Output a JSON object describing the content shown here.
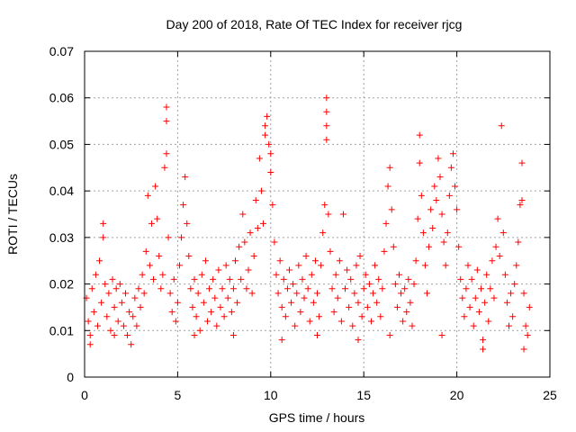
{
  "chart_data": {
    "type": "scatter",
    "title": "Day 200 of 2018, Rate Of TEC Index for receiver rjcg",
    "xlabel": "GPS time / hours",
    "ylabel": "ROTI / TECUs",
    "xlim": [
      0,
      25
    ],
    "ylim": [
      0,
      0.07
    ],
    "xticks": [
      "0",
      "5",
      "10",
      "15",
      "20",
      "25"
    ],
    "yticks": [
      "0",
      "0.01",
      "0.02",
      "0.03",
      "0.04",
      "0.05",
      "0.06",
      "0.07"
    ],
    "grid": true,
    "marker": "plus",
    "series": [
      {
        "color": "#ff0000",
        "points": [
          [
            0.1,
            0.017
          ],
          [
            0.2,
            0.012
          ],
          [
            0.3,
            0.009
          ],
          [
            0.4,
            0.019
          ],
          [
            0.5,
            0.014
          ],
          [
            0.6,
            0.022
          ],
          [
            0.7,
            0.011
          ],
          [
            0.8,
            0.025
          ],
          [
            0.9,
            0.016
          ],
          [
            1.0,
            0.033
          ],
          [
            1.0,
            0.03
          ],
          [
            1.1,
            0.02
          ],
          [
            1.2,
            0.013
          ],
          [
            1.3,
            0.018
          ],
          [
            1.4,
            0.01
          ],
          [
            1.5,
            0.021
          ],
          [
            1.6,
            0.015
          ],
          [
            1.7,
            0.019
          ],
          [
            1.8,
            0.012
          ],
          [
            1.9,
            0.02
          ],
          [
            2.0,
            0.016
          ],
          [
            2.1,
            0.011
          ],
          [
            2.2,
            0.018
          ],
          [
            2.3,
            0.009
          ],
          [
            2.4,
            0.014
          ],
          [
            2.5,
            0.007
          ],
          [
            2.6,
            0.013
          ],
          [
            2.7,
            0.017
          ],
          [
            2.8,
            0.011
          ],
          [
            2.9,
            0.019
          ],
          [
            3.0,
            0.015
          ],
          [
            3.1,
            0.022
          ],
          [
            3.2,
            0.018
          ],
          [
            3.3,
            0.027
          ],
          [
            3.4,
            0.039
          ],
          [
            3.5,
            0.024
          ],
          [
            3.6,
            0.033
          ],
          [
            3.7,
            0.021
          ],
          [
            3.8,
            0.041
          ],
          [
            3.9,
            0.034
          ],
          [
            4.0,
            0.026
          ],
          [
            4.1,
            0.019
          ],
          [
            4.2,
            0.022
          ],
          [
            4.3,
            0.045
          ],
          [
            4.4,
            0.058
          ],
          [
            4.4,
            0.055
          ],
          [
            4.4,
            0.048
          ],
          [
            4.5,
            0.03
          ],
          [
            4.6,
            0.018
          ],
          [
            4.7,
            0.014
          ],
          [
            4.8,
            0.021
          ],
          [
            4.9,
            0.012
          ],
          [
            5.0,
            0.016
          ],
          [
            5.1,
            0.024
          ],
          [
            5.2,
            0.03
          ],
          [
            5.3,
            0.037
          ],
          [
            5.4,
            0.043
          ],
          [
            5.5,
            0.033
          ],
          [
            5.6,
            0.026
          ],
          [
            5.7,
            0.019
          ],
          [
            5.8,
            0.015
          ],
          [
            5.9,
            0.021
          ],
          [
            6.0,
            0.013
          ],
          [
            6.1,
            0.018
          ],
          [
            6.2,
            0.01
          ],
          [
            6.3,
            0.022
          ],
          [
            6.4,
            0.016
          ],
          [
            6.5,
            0.025
          ],
          [
            6.6,
            0.012
          ],
          [
            6.7,
            0.019
          ],
          [
            6.8,
            0.014
          ],
          [
            6.9,
            0.021
          ],
          [
            7.0,
            0.017
          ],
          [
            7.1,
            0.011
          ],
          [
            7.2,
            0.023
          ],
          [
            7.3,
            0.015
          ],
          [
            7.4,
            0.019
          ],
          [
            7.5,
            0.013
          ],
          [
            7.6,
            0.024
          ],
          [
            7.7,
            0.017
          ],
          [
            7.8,
            0.021
          ],
          [
            7.9,
            0.014
          ],
          [
            8.0,
            0.019
          ],
          [
            8.1,
            0.025
          ],
          [
            8.2,
            0.016
          ],
          [
            8.3,
            0.028
          ],
          [
            8.4,
            0.021
          ],
          [
            8.5,
            0.035
          ],
          [
            8.6,
            0.029
          ],
          [
            8.7,
            0.019
          ],
          [
            8.8,
            0.023
          ],
          [
            8.9,
            0.031
          ],
          [
            9.0,
            0.018
          ],
          [
            9.1,
            0.026
          ],
          [
            9.2,
            0.038
          ],
          [
            9.3,
            0.032
          ],
          [
            9.4,
            0.047
          ],
          [
            9.5,
            0.04
          ],
          [
            9.6,
            0.033
          ],
          [
            9.7,
            0.054
          ],
          [
            9.7,
            0.052
          ],
          [
            9.8,
            0.056
          ],
          [
            9.9,
            0.05
          ],
          [
            10.0,
            0.044
          ],
          [
            10.0,
            0.048
          ],
          [
            10.1,
            0.037
          ],
          [
            10.2,
            0.029
          ],
          [
            10.3,
            0.022
          ],
          [
            10.4,
            0.018
          ],
          [
            10.5,
            0.025
          ],
          [
            10.6,
            0.015
          ],
          [
            10.7,
            0.021
          ],
          [
            10.8,
            0.013
          ],
          [
            10.9,
            0.019
          ],
          [
            11.0,
            0.023
          ],
          [
            11.1,
            0.016
          ],
          [
            11.2,
            0.02
          ],
          [
            11.3,
            0.011
          ],
          [
            11.4,
            0.018
          ],
          [
            11.5,
            0.024
          ],
          [
            11.6,
            0.014
          ],
          [
            11.7,
            0.021
          ],
          [
            11.8,
            0.017
          ],
          [
            11.9,
            0.026
          ],
          [
            12.0,
            0.019
          ],
          [
            12.1,
            0.012
          ],
          [
            12.2,
            0.022
          ],
          [
            12.3,
            0.016
          ],
          [
            12.4,
            0.025
          ],
          [
            12.5,
            0.018
          ],
          [
            12.6,
            0.013
          ],
          [
            12.7,
            0.024
          ],
          [
            12.8,
            0.031
          ],
          [
            12.9,
            0.037
          ],
          [
            13.0,
            0.06
          ],
          [
            13.0,
            0.057
          ],
          [
            13.0,
            0.054
          ],
          [
            13.0,
            0.051
          ],
          [
            13.1,
            0.035
          ],
          [
            13.2,
            0.027
          ],
          [
            13.3,
            0.019
          ],
          [
            13.4,
            0.014
          ],
          [
            13.5,
            0.022
          ],
          [
            13.6,
            0.017
          ],
          [
            13.7,
            0.025
          ],
          [
            13.8,
            0.012
          ],
          [
            13.9,
            0.035
          ],
          [
            14.0,
            0.019
          ],
          [
            14.1,
            0.023
          ],
          [
            14.2,
            0.015
          ],
          [
            14.3,
            0.021
          ],
          [
            14.4,
            0.011
          ],
          [
            14.5,
            0.018
          ],
          [
            14.6,
            0.024
          ],
          [
            14.7,
            0.016
          ],
          [
            14.8,
            0.026
          ],
          [
            14.9,
            0.013
          ],
          [
            15.0,
            0.019
          ],
          [
            15.1,
            0.022
          ],
          [
            15.2,
            0.015
          ],
          [
            15.3,
            0.02
          ],
          [
            15.4,
            0.012
          ],
          [
            15.5,
            0.018
          ],
          [
            15.6,
            0.024
          ],
          [
            15.7,
            0.016
          ],
          [
            15.8,
            0.021
          ],
          [
            15.9,
            0.013
          ],
          [
            16.0,
            0.019
          ],
          [
            16.1,
            0.027
          ],
          [
            16.2,
            0.033
          ],
          [
            16.3,
            0.041
          ],
          [
            16.4,
            0.045
          ],
          [
            16.5,
            0.036
          ],
          [
            16.6,
            0.028
          ],
          [
            16.7,
            0.02
          ],
          [
            16.8,
            0.015
          ],
          [
            16.9,
            0.022
          ],
          [
            17.0,
            0.018
          ],
          [
            17.1,
            0.012
          ],
          [
            17.2,
            0.019
          ],
          [
            17.3,
            0.014
          ],
          [
            17.4,
            0.021
          ],
          [
            17.5,
            0.016
          ],
          [
            17.6,
            0.011
          ],
          [
            17.7,
            0.02
          ],
          [
            17.8,
            0.025
          ],
          [
            17.9,
            0.034
          ],
          [
            18.0,
            0.046
          ],
          [
            18.0,
            0.052
          ],
          [
            18.1,
            0.039
          ],
          [
            18.2,
            0.031
          ],
          [
            18.3,
            0.024
          ],
          [
            18.4,
            0.018
          ],
          [
            18.5,
            0.028
          ],
          [
            18.6,
            0.036
          ],
          [
            18.7,
            0.032
          ],
          [
            18.8,
            0.041
          ],
          [
            18.9,
            0.038
          ],
          [
            19.0,
            0.047
          ],
          [
            19.1,
            0.043
          ],
          [
            19.2,
            0.035
          ],
          [
            19.3,
            0.029
          ],
          [
            19.4,
            0.024
          ],
          [
            19.5,
            0.031
          ],
          [
            19.6,
            0.039
          ],
          [
            19.7,
            0.045
          ],
          [
            19.8,
            0.048
          ],
          [
            19.9,
            0.041
          ],
          [
            20.0,
            0.036
          ],
          [
            20.1,
            0.028
          ],
          [
            20.2,
            0.021
          ],
          [
            20.3,
            0.017
          ],
          [
            20.4,
            0.013
          ],
          [
            20.5,
            0.019
          ],
          [
            20.6,
            0.024
          ],
          [
            20.7,
            0.015
          ],
          [
            20.8,
            0.021
          ],
          [
            20.9,
            0.011
          ],
          [
            21.0,
            0.017
          ],
          [
            21.1,
            0.023
          ],
          [
            21.2,
            0.014
          ],
          [
            21.3,
            0.019
          ],
          [
            21.4,
            0.006
          ],
          [
            21.5,
            0.016
          ],
          [
            21.6,
            0.022
          ],
          [
            21.7,
            0.012
          ],
          [
            21.8,
            0.019
          ],
          [
            21.9,
            0.025
          ],
          [
            22.0,
            0.017
          ],
          [
            22.1,
            0.028
          ],
          [
            22.2,
            0.034
          ],
          [
            22.3,
            0.026
          ],
          [
            22.4,
            0.054
          ],
          [
            22.5,
            0.031
          ],
          [
            22.6,
            0.022
          ],
          [
            22.7,
            0.016
          ],
          [
            22.8,
            0.011
          ],
          [
            22.9,
            0.018
          ],
          [
            23.0,
            0.013
          ],
          [
            23.1,
            0.02
          ],
          [
            23.2,
            0.024
          ],
          [
            23.3,
            0.029
          ],
          [
            23.4,
            0.037
          ],
          [
            23.5,
            0.046
          ],
          [
            23.5,
            0.038
          ],
          [
            23.6,
            0.018
          ],
          [
            23.7,
            0.011
          ],
          [
            23.8,
            0.009
          ],
          [
            23.9,
            0.015
          ],
          [
            0.3,
            0.007
          ],
          [
            1.6,
            0.009
          ],
          [
            5.9,
            0.009
          ],
          [
            8.0,
            0.009
          ],
          [
            10.6,
            0.008
          ],
          [
            12.5,
            0.009
          ],
          [
            14.7,
            0.008
          ],
          [
            16.4,
            0.009
          ],
          [
            19.2,
            0.009
          ],
          [
            21.4,
            0.008
          ],
          [
            23.6,
            0.006
          ]
        ]
      }
    ]
  }
}
